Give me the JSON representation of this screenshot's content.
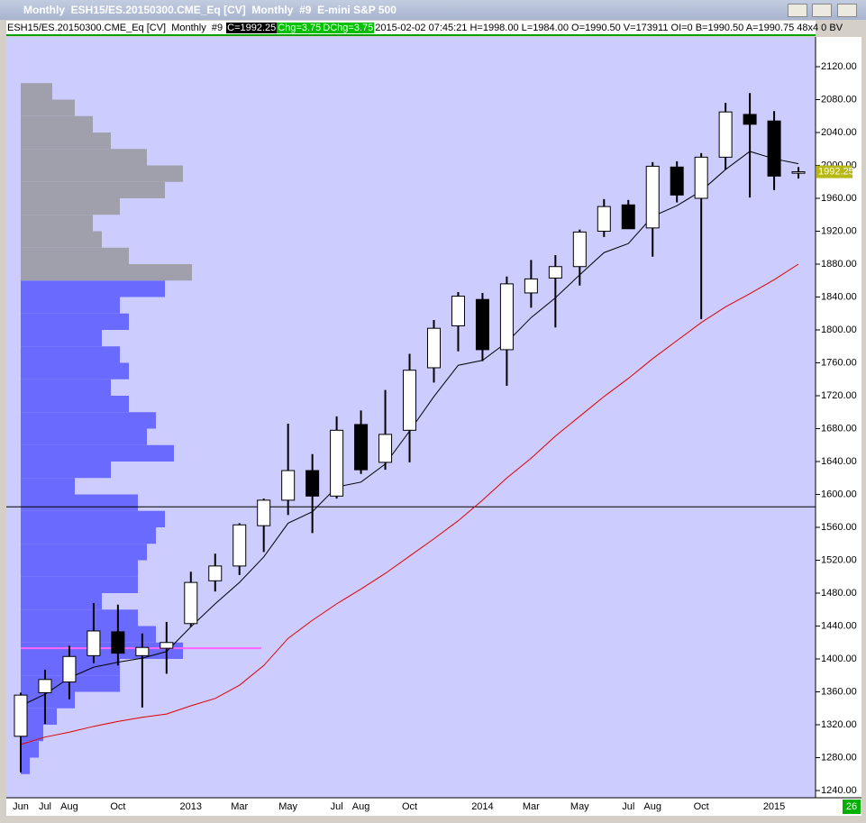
{
  "window": {
    "title": "Monthly  ESH15/ES.20150300.CME_Eq [CV]  Monthly  #9  E-mini S&P 500"
  },
  "header": {
    "symbol": "ESH15/ES.20150300.CME_Eq [CV]  Monthly  #9 ",
    "close": "C=1992.25",
    "change": "Chg=3.75",
    "day_change": "DChg=3.75",
    "details": "2015-02-02 07:45:21 H=1998.00 L=1984.00 O=1990.50 V=173911 OI=0 B=1990.50 A=1990.75 48x4 0 BV"
  },
  "chart_data": {
    "type": "candlestick",
    "categories": [
      "Jun",
      "Jul",
      "Aug",
      null,
      "Oct",
      null,
      null,
      "2013",
      null,
      "Mar",
      null,
      "May",
      null,
      "Jul",
      "Aug",
      null,
      "Oct",
      null,
      null,
      "2014",
      null,
      "Mar",
      null,
      "May",
      null,
      "Jul",
      "Aug",
      null,
      "Oct",
      null,
      null,
      "2015",
      null
    ],
    "open": [
      1306,
      1359,
      1372,
      1404,
      1433,
      1404,
      1413,
      1443,
      1495,
      1513,
      1562,
      1593,
      1629,
      1598,
      1685,
      1639,
      1678,
      1754,
      1805,
      1837,
      1776,
      1845,
      1863,
      1877,
      1920,
      1952,
      1924,
      1998,
      1960,
      2010,
      2062,
      2054,
      1990.5
    ],
    "high": [
      1359,
      1387,
      1416,
      1468,
      1466,
      1431,
      1445,
      1506,
      1528,
      1565,
      1595,
      1686,
      1649,
      1695,
      1702,
      1727,
      1771,
      1812,
      1846,
      1845,
      1865,
      1885,
      1891,
      1922,
      1959,
      1958,
      2004,
      2005,
      2015,
      2076,
      2088,
      2066,
      1998
    ],
    "low": [
      1262,
      1321,
      1351,
      1395,
      1392,
      1341,
      1382,
      1439,
      1482,
      1502,
      1530,
      1575,
      1553,
      1595,
      1625,
      1630,
      1639,
      1736,
      1774,
      1762,
      1732,
      1827,
      1803,
      1854,
      1913,
      1923,
      1889,
      1955,
      1813,
      1995,
      1961,
      1970,
      1984
    ],
    "close": [
      1356,
      1375,
      1403,
      1434,
      1407,
      1414,
      1420,
      1493,
      1513,
      1563,
      1593,
      1629,
      1598,
      1678,
      1630,
      1673,
      1751,
      1802,
      1841,
      1776,
      1856,
      1862,
      1877,
      1919,
      1950,
      1923,
      1999,
      1964,
      2010,
      2065,
      2050,
      1987,
      1992.25
    ],
    "up_color": "#ffffff",
    "down_color": "#000000",
    "lines": [
      {
        "color": "#000000",
        "values": [
          1343,
          1357,
          1377,
          1390,
          1396,
          1401,
          1409,
          1439,
          1467,
          1493,
          1524,
          1565,
          1579,
          1609,
          1615,
          1637,
          1677,
          1719,
          1757,
          1763,
          1785,
          1815,
          1839,
          1867,
          1894,
          1905,
          1938,
          1951,
          1969,
          1995,
          2017,
          2008,
          2002
        ]
      },
      {
        "color": "#e00000",
        "values": [
          1296,
          1305,
          1311,
          1318,
          1324,
          1329,
          1333,
          1343,
          1352,
          1368,
          1392,
          1425,
          1447,
          1467,
          1485,
          1504,
          1525,
          1546,
          1568,
          1593,
          1620,
          1644,
          1671,
          1695,
          1719,
          1741,
          1765,
          1787,
          1809,
          1828,
          1844,
          1861,
          1880
        ]
      }
    ],
    "hline": {
      "value": 1585,
      "color": "#000000"
    },
    "profile": {
      "prices": [
        1260,
        1280,
        1300,
        1320,
        1340,
        1360,
        1380,
        1400,
        1420,
        1440,
        1460,
        1480,
        1500,
        1520,
        1540,
        1560,
        1580,
        1600,
        1620,
        1640,
        1660,
        1680,
        1700,
        1720,
        1740,
        1760,
        1780,
        1800,
        1820,
        1840,
        1860,
        1880,
        1900,
        1920,
        1940,
        1960,
        1980,
        2000,
        2020,
        2040,
        2060,
        2080
      ],
      "volumes": [
        10,
        20,
        25,
        40,
        60,
        110,
        110,
        180,
        150,
        130,
        90,
        130,
        130,
        140,
        150,
        160,
        130,
        60,
        100,
        170,
        140,
        150,
        120,
        100,
        120,
        110,
        90,
        120,
        110,
        160,
        190,
        120,
        90,
        80,
        110,
        160,
        180,
        140,
        100,
        80,
        60,
        35
      ],
      "colors": [
        "#6a6aff",
        "#6a6aff",
        "#6a6aff",
        "#6a6aff",
        "#6a6aff",
        "#6a6aff",
        "#6a6aff",
        "#6a6aff",
        "#6a6aff",
        "#6a6aff",
        "#6a6aff",
        "#6a6aff",
        "#6a6aff",
        "#6a6aff",
        "#6a6aff",
        "#6a6aff",
        "#6a6aff",
        "#6a6aff",
        "#6a6aff",
        "#6a6aff",
        "#6a6aff",
        "#6a6aff",
        "#6a6aff",
        "#6a6aff",
        "#6a6aff",
        "#6a6aff",
        "#6a6aff",
        "#6a6aff",
        "#6a6aff",
        "#6a6aff",
        "#a0a0ac",
        "#a0a0ac",
        "#a0a0ac",
        "#a0a0ac",
        "#a0a0ac",
        "#a0a0ac",
        "#a0a0ac",
        "#a0a0ac",
        "#a0a0ac",
        "#a0a0ac",
        "#a0a0ac",
        "#a0a0ac"
      ],
      "poc": 1413,
      "poc_color": "#ff66ff"
    },
    "ylim": [
      1240,
      2120
    ],
    "yticks": [
      {
        "value": 1240,
        "label": "1240.00"
      },
      {
        "value": 1280,
        "label": "1280.00"
      },
      {
        "value": 1320,
        "label": "1320.00"
      },
      {
        "value": 1360,
        "label": "1360.00"
      },
      {
        "value": 1400,
        "label": "1400.00"
      },
      {
        "value": 1440,
        "label": "1440.00"
      },
      {
        "value": 1480,
        "label": "1480.00"
      },
      {
        "value": 1520,
        "label": "1520.00"
      },
      {
        "value": 1560,
        "label": "1560.00"
      },
      {
        "value": 1600,
        "label": "1600.00"
      },
      {
        "value": 1640,
        "label": "1640.00"
      },
      {
        "value": 1680,
        "label": "1680.00"
      },
      {
        "value": 1720,
        "label": "1720.00"
      },
      {
        "value": 1760,
        "label": "1760.00"
      },
      {
        "value": 1800,
        "label": "1800.00"
      },
      {
        "value": 1840,
        "label": "1840.00"
      },
      {
        "value": 1880,
        "label": "1880.00"
      },
      {
        "value": 1920,
        "label": "1920.00"
      },
      {
        "value": 1960,
        "label": "1960.00"
      },
      {
        "value": 2000,
        "label": "2000.00"
      },
      {
        "value": 2040,
        "label": "2040.00"
      },
      {
        "value": 2080,
        "label": "2080.00"
      },
      {
        "value": 2120,
        "label": "2120.00"
      }
    ],
    "corner_label": "26"
  }
}
